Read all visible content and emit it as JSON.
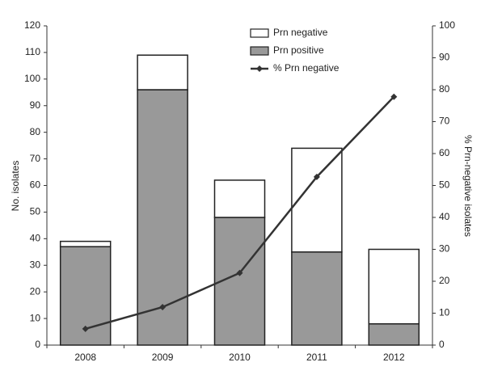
{
  "chart_data": {
    "type": "bar",
    "categories": [
      "2008",
      "2009",
      "2010",
      "2011",
      "2012"
    ],
    "series": [
      {
        "name": "Prn negative",
        "type": "bar",
        "color": "#ffffff",
        "values": [
          2,
          13,
          14,
          39,
          28
        ]
      },
      {
        "name": "Prn positive",
        "type": "bar",
        "color": "#999999",
        "values": [
          37,
          96,
          48,
          35,
          8
        ]
      },
      {
        "name": "% Prn negative",
        "type": "line",
        "axis": "y2",
        "color": "#333333",
        "values": [
          5.1,
          11.9,
          22.6,
          52.7,
          77.8
        ]
      }
    ],
    "y_label": "No. isolates",
    "y2_label": "% Prn-negative isolates",
    "ylim": [
      0,
      120
    ],
    "yticks": [
      0,
      10,
      20,
      30,
      40,
      50,
      60,
      70,
      80,
      90,
      100,
      110,
      120
    ],
    "y2lim": [
      0,
      100
    ],
    "y2ticks": [
      0,
      10,
      20,
      30,
      40,
      50,
      60,
      70,
      80,
      90,
      100
    ],
    "grid": false,
    "legend": "top"
  }
}
